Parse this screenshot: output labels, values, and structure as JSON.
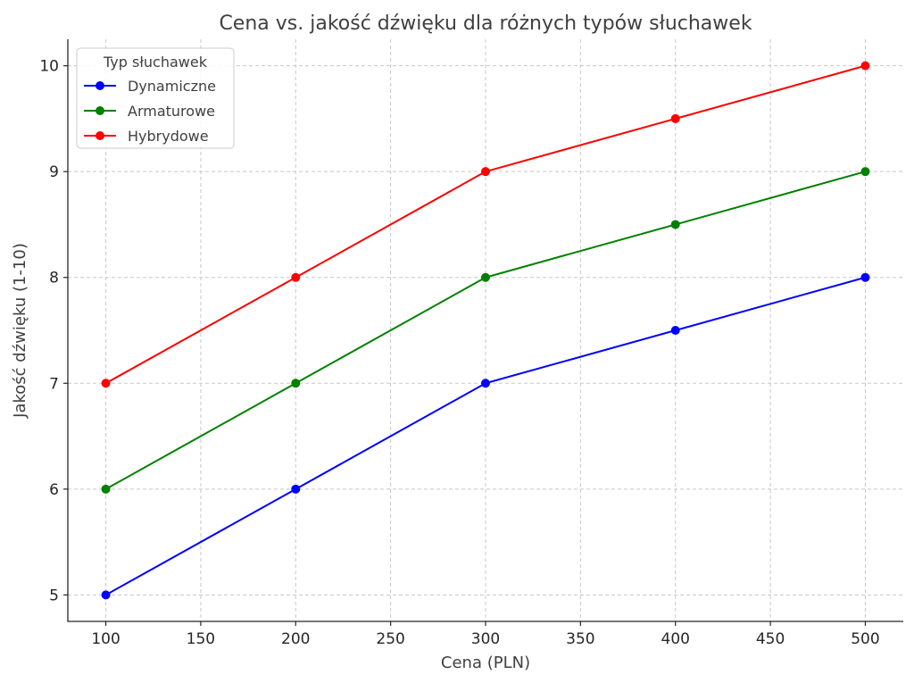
{
  "chart_data": {
    "type": "line",
    "title": "Cena vs. jakość dźwięku dla różnych typów słuchawek",
    "xlabel": "Cena (PLN)",
    "ylabel": "Jakość dźwięku (1-10)",
    "x": [
      100,
      200,
      300,
      400,
      500
    ],
    "xlim": [
      80,
      520
    ],
    "ylim": [
      4.75,
      10.25
    ],
    "xticks": [
      100,
      150,
      200,
      250,
      300,
      350,
      400,
      450,
      500
    ],
    "yticks": [
      5,
      6,
      7,
      8,
      9,
      10
    ],
    "grid": true,
    "legend": {
      "title": "Typ słuchawek",
      "position": "top-left"
    },
    "series": [
      {
        "name": "Dynamiczne",
        "color": "#0000ff",
        "values": [
          5,
          6,
          7,
          7.5,
          8
        ]
      },
      {
        "name": "Armaturowe",
        "color": "#008000",
        "values": [
          6,
          7,
          8,
          8.5,
          9
        ]
      },
      {
        "name": "Hybrydowe",
        "color": "#ff0000",
        "values": [
          7,
          8,
          9,
          9.5,
          10
        ]
      }
    ]
  }
}
